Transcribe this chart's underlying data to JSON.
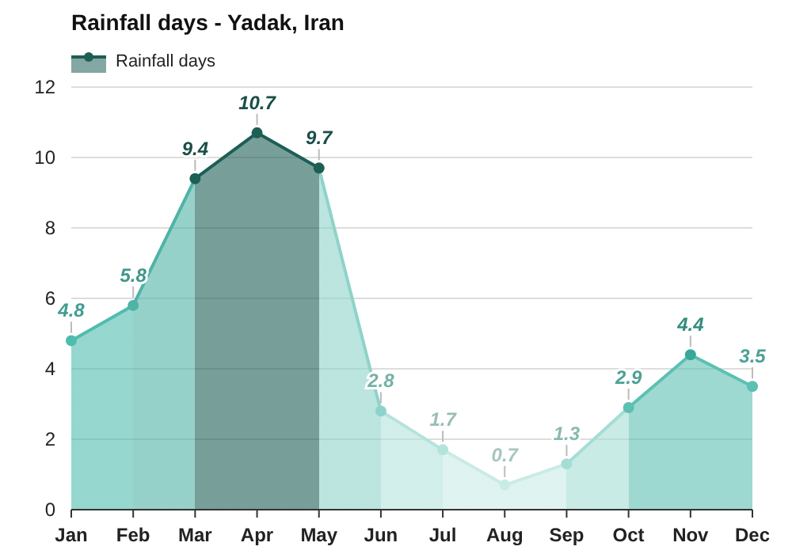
{
  "chart_data": {
    "type": "area",
    "title": "Rainfall days - Yadak, Iran",
    "categories": [
      "Jan",
      "Feb",
      "Mar",
      "Apr",
      "May",
      "Jun",
      "Jul",
      "Aug",
      "Sep",
      "Oct",
      "Nov",
      "Dec"
    ],
    "series": [
      {
        "name": "Rainfall days",
        "color": "#1d5e55",
        "values": [
          4.8,
          5.8,
          9.4,
          10.7,
          9.7,
          2.8,
          1.7,
          0.7,
          1.3,
          2.9,
          4.4,
          3.5
        ],
        "colors": [
          "#4fbcae",
          "#4fb3a5",
          "#1d5e55",
          "#1d5e55",
          "#1d5e55",
          "#8ed3c9",
          "#b4e3dc",
          "#c9ebe6",
          "#a5ddd5",
          "#5cc0b2",
          "#3aa898",
          "#5cc0b2"
        ]
      }
    ],
    "ylim": [
      0,
      12
    ],
    "yticks": [
      0,
      2,
      4,
      6,
      8,
      10,
      12
    ],
    "grid": "y",
    "legend": "top left",
    "marker": "circle",
    "data_labels": true
  }
}
